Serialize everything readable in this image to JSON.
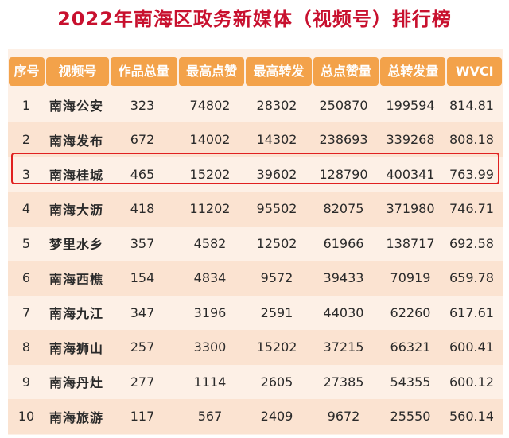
{
  "title": "2022年南海区政务新媒体（视频号）排行榜",
  "table": {
    "headers": [
      "序号",
      "视频号",
      "作品总量",
      "最高点赞",
      "最高转发",
      "总点赞量",
      "总转发量",
      "WVCI"
    ],
    "rows": [
      [
        "1",
        "南海公安",
        "323",
        "74802",
        "28302",
        "250870",
        "199594",
        "814.81"
      ],
      [
        "2",
        "南海发布",
        "672",
        "14002",
        "14302",
        "238693",
        "339268",
        "808.18"
      ],
      [
        "3",
        "南海桂城",
        "465",
        "15202",
        "39602",
        "128790",
        "400341",
        "763.99"
      ],
      [
        "4",
        "南海大沥",
        "418",
        "11202",
        "95502",
        "82075",
        "371980",
        "746.71"
      ],
      [
        "5",
        "梦里水乡",
        "357",
        "4582",
        "12502",
        "61966",
        "138717",
        "692.58"
      ],
      [
        "6",
        "南海西樵",
        "154",
        "4834",
        "9572",
        "39433",
        "70919",
        "659.78"
      ],
      [
        "7",
        "南海九江",
        "347",
        "3196",
        "2591",
        "44030",
        "62260",
        "617.61"
      ],
      [
        "8",
        "南海狮山",
        "257",
        "3300",
        "15202",
        "37215",
        "66321",
        "600.41"
      ],
      [
        "9",
        "南海丹灶",
        "277",
        "1114",
        "2605",
        "27385",
        "54355",
        "600.12"
      ],
      [
        "10",
        "南海旅游",
        "117",
        "567",
        "2409",
        "9672",
        "25550",
        "560.14"
      ]
    ],
    "highlighted_row": "3"
  },
  "colors": {
    "title": "#c8102e",
    "header_bg": "#f3a24a",
    "header_text": "#ffffff",
    "row_bg": "#fdf0e6",
    "row_alt_bg": "#fbe3d1",
    "highlight_border": "#e02020"
  }
}
